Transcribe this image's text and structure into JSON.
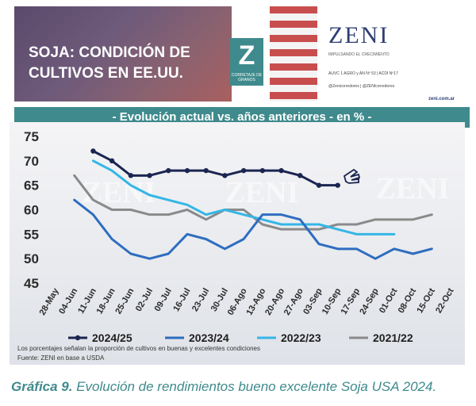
{
  "banner": {
    "title_line1": "SOJA: CONDICIÓN DE",
    "title_line2": "CULTIVOS EN EE.UU.",
    "logo_letter": "Z",
    "logo_sub": "CORRETAJE DE GRANOS",
    "brand_name": "ZENI",
    "brand_tag": "IMPULSANDO EL CRECIMIENTO",
    "brand_line": "AUVC 1 AGRO y AN Nº 53 | ACDI Nº17",
    "brand_contact": "@Zenicorredores | @ZENIcorredores",
    "brand_web": "zeni.com.ar"
  },
  "subtitle": "- Evolución actual vs. años anteriores - en % -",
  "caption": {
    "label": "Gráfica 9.",
    "text": " Evolución de rendimientos bueno excelente Soja USA 2024."
  },
  "chart_data": {
    "type": "line",
    "title": "",
    "xlabel": "",
    "ylabel": "",
    "ylim": [
      45,
      75
    ],
    "yticks": [
      45,
      50,
      55,
      60,
      65,
      70,
      75
    ],
    "grid": false,
    "legend_position": "bottom",
    "categories": [
      "28-May",
      "04-Jun",
      "11-Jun",
      "18-Jun",
      "25-Jun",
      "02-Jul",
      "09-Jul",
      "16-Jul",
      "23-Jul",
      "30-Jul",
      "06-Ago",
      "13-Ago",
      "20-Ago",
      "27-Ago",
      "03-Sep",
      "10-Sep",
      "17-Sep",
      "24-Sep",
      "01-Oct",
      "08-Oct",
      "15-Oct",
      "22-Oct"
    ],
    "series": [
      {
        "name": "2024/25",
        "color": "#1b2550",
        "marker": "circle",
        "values": [
          null,
          null,
          72,
          70,
          67,
          67,
          68,
          68,
          68,
          67,
          68,
          68,
          68,
          67,
          65,
          65,
          null,
          null,
          null,
          null,
          null,
          null
        ]
      },
      {
        "name": "2023/24",
        "color": "#2e6dbf",
        "marker": null,
        "values": [
          null,
          62,
          59,
          54,
          51,
          50,
          51,
          55,
          54,
          52,
          54,
          59,
          59,
          58,
          53,
          52,
          52,
          50,
          52,
          51,
          52,
          null
        ]
      },
      {
        "name": "2022/23",
        "color": "#35b6e6",
        "marker": null,
        "values": [
          null,
          null,
          70,
          68,
          65,
          63,
          62,
          61,
          59,
          60,
          59,
          58,
          57,
          57,
          57,
          56,
          55,
          55,
          55,
          null,
          null,
          null
        ]
      },
      {
        "name": "2021/22",
        "color": "#8a8a8a",
        "marker": null,
        "values": [
          null,
          67,
          62,
          60,
          60,
          59,
          59,
          60,
          58,
          60,
          60,
          57,
          56,
          56,
          56,
          57,
          57,
          58,
          58,
          58,
          59,
          null
        ]
      }
    ],
    "footnote_line1": "Los porcentajes señalan la proporción de cultivos en buenas y excelentes condiciones",
    "footnote_line2": "Fuente: ZENI en base a USDA",
    "watermark": "ZENI"
  }
}
